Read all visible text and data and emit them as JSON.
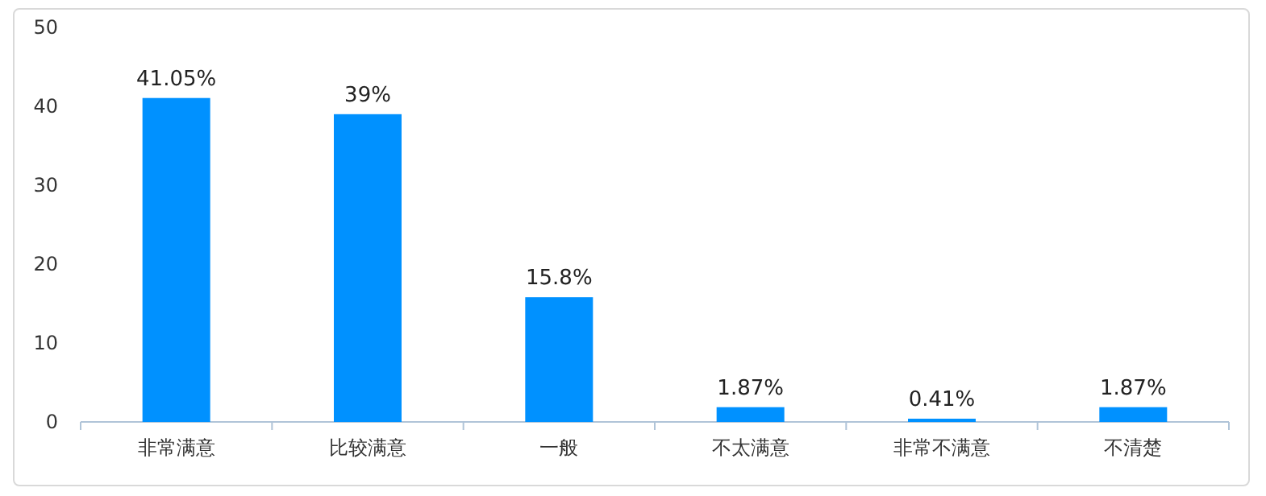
{
  "chart_data": {
    "type": "bar",
    "categories": [
      "非常满意",
      "比较满意",
      "一般",
      "不太满意",
      "非常不满意",
      "不清楚"
    ],
    "values": [
      41.05,
      39,
      15.8,
      1.87,
      0.41,
      1.87
    ],
    "value_labels": [
      "41.05%",
      "39%",
      "15.8%",
      "1.87%",
      "0.41%",
      "1.87%"
    ],
    "color": "#0091ff",
    "ylim": [
      0,
      50
    ],
    "yticks": [
      0,
      10,
      20,
      30,
      40,
      50
    ]
  }
}
